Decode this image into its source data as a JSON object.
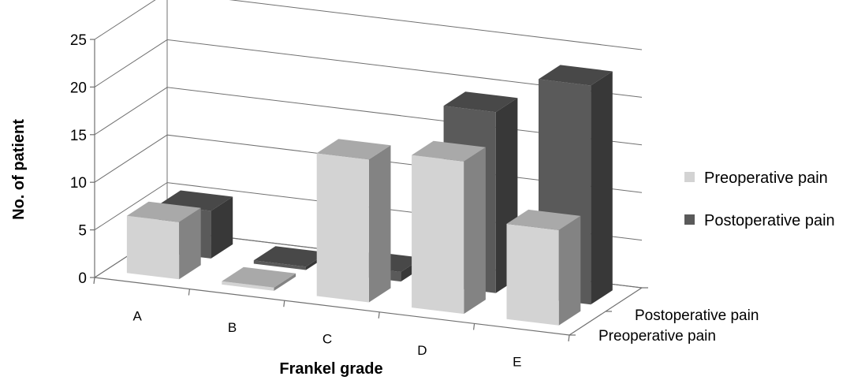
{
  "chart_data": {
    "type": "bar",
    "subtype": "3d-clustered-depth",
    "title": "",
    "xlabel": "Frankel grade",
    "ylabel": "No. of patient",
    "categories": [
      "A",
      "B",
      "C",
      "D",
      "E"
    ],
    "y_ticks": [
      "0",
      "5",
      "10",
      "15",
      "20",
      "25"
    ],
    "ylim": [
      0,
      25
    ],
    "grid": true,
    "legend_position": "right",
    "depth_axis_labels": [
      "Postoperative pain",
      "Preoperative pain"
    ],
    "series": [
      {
        "name": "Preoperative pain",
        "values": [
          6,
          0,
          15,
          16,
          10
        ],
        "color": "#d3d3d3"
      },
      {
        "name": "Postoperative pain",
        "values": [
          5,
          0,
          1,
          19,
          23
        ],
        "color": "#5a5a5a"
      }
    ]
  }
}
